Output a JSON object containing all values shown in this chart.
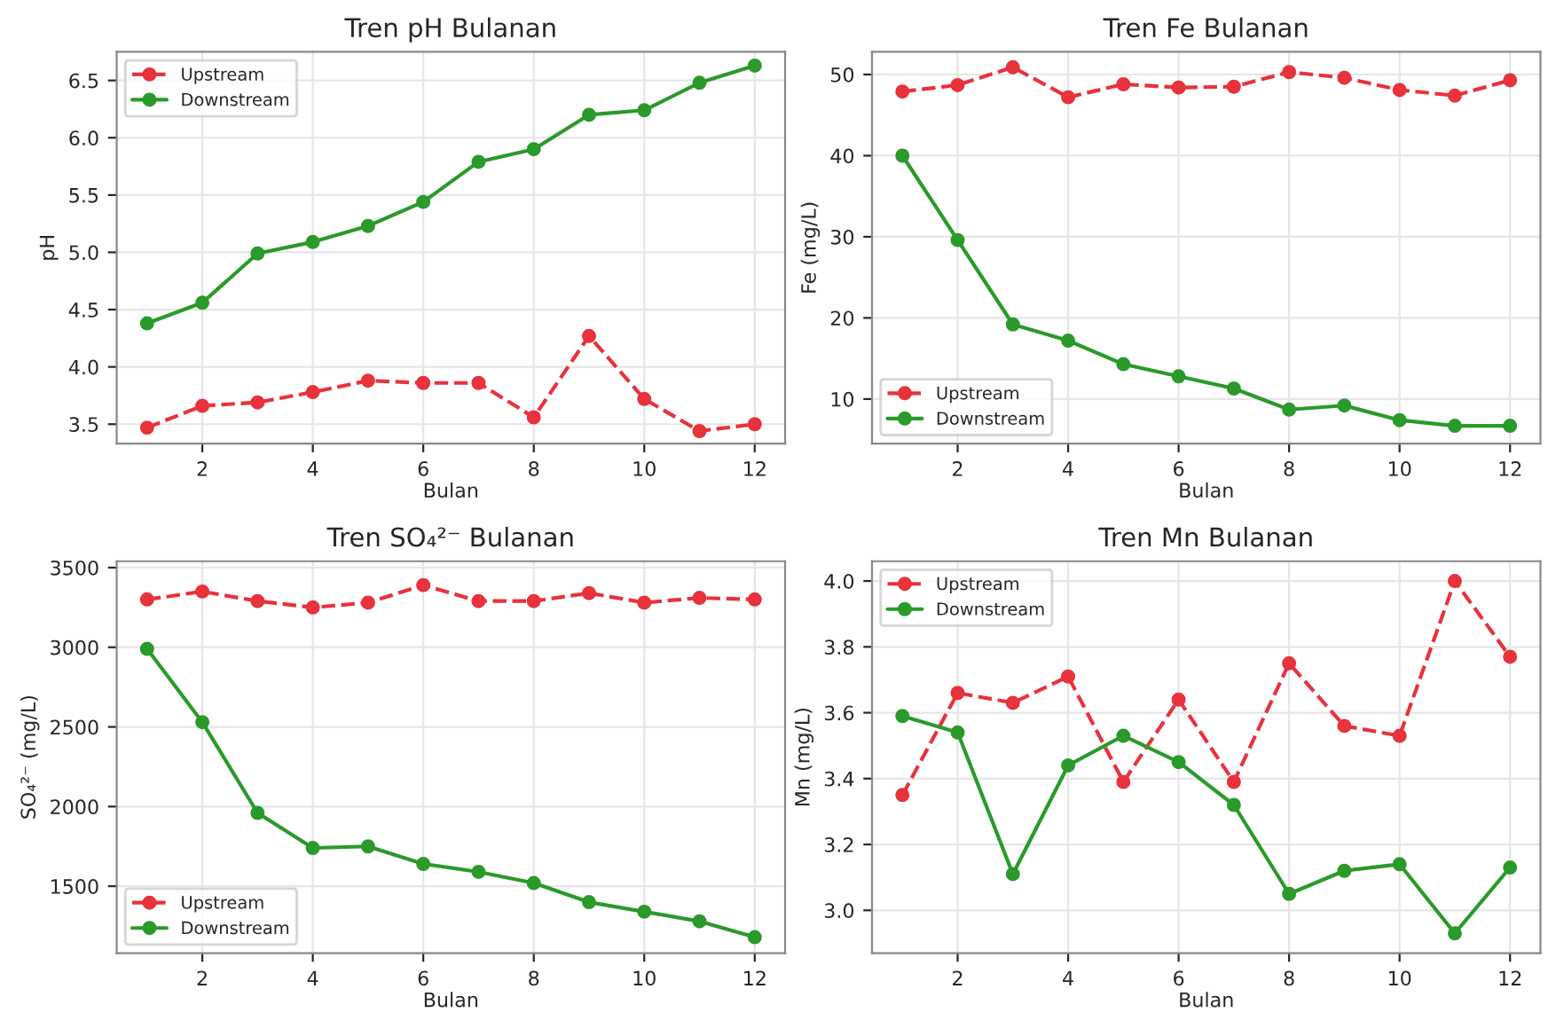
{
  "chart_data": [
    {
      "type": "line",
      "title": "Tren pH Bulanan",
      "xlabel": "Bulan",
      "ylabel": "pH",
      "x": [
        1,
        2,
        3,
        4,
        5,
        6,
        7,
        8,
        9,
        10,
        11,
        12
      ],
      "xlim": [
        0.45,
        12.55
      ],
      "xticks": [
        2,
        4,
        6,
        8,
        10,
        12
      ],
      "ylim": [
        3.33,
        6.75
      ],
      "yticks": [
        3.5,
        {
          "value": 4,
          "label": "4.0"
        },
        4.5,
        {
          "value": 5,
          "label": "5.0"
        },
        5.5,
        {
          "value": 6,
          "label": "6.0"
        },
        6.5
      ],
      "grid": true,
      "legend": "top left",
      "marker": "circle",
      "series": [
        {
          "name": "Upstream",
          "color": "#e8323c",
          "line_style": "dashed",
          "values": [
            3.47,
            3.66,
            3.69,
            3.78,
            3.88,
            3.86,
            3.86,
            3.56,
            4.27,
            3.72,
            3.44,
            3.5
          ]
        },
        {
          "name": "Downstream",
          "color": "#2a9a2a",
          "line_style": "solid",
          "values": [
            4.38,
            4.56,
            4.99,
            5.09,
            5.23,
            5.44,
            5.79,
            5.9,
            6.2,
            6.24,
            6.48,
            6.63
          ]
        }
      ]
    },
    {
      "type": "line",
      "title": "Tren Fe Bulanan",
      "xlabel": "Bulan",
      "ylabel": "Fe (mg/L)",
      "x": [
        1,
        2,
        3,
        4,
        5,
        6,
        7,
        8,
        9,
        10,
        11,
        12
      ],
      "xlim": [
        0.45,
        12.55
      ],
      "xticks": [
        2,
        4,
        6,
        8,
        10,
        12
      ],
      "ylim": [
        4.5,
        52.8
      ],
      "yticks": [
        10,
        20,
        30,
        40,
        50
      ],
      "grid": true,
      "legend": "bottom left",
      "marker": "circle",
      "series": [
        {
          "name": "Upstream",
          "color": "#e8323c",
          "line_style": "dashed",
          "values": [
            47.9,
            48.7,
            50.9,
            47.2,
            48.8,
            48.4,
            48.5,
            50.3,
            49.6,
            48.1,
            47.4,
            49.3
          ]
        },
        {
          "name": "Downstream",
          "color": "#2a9a2a",
          "line_style": "solid",
          "values": [
            40.0,
            29.6,
            19.2,
            17.2,
            14.3,
            12.8,
            11.3,
            8.7,
            9.2,
            7.4,
            6.7,
            6.7
          ]
        }
      ]
    },
    {
      "type": "line",
      "title": "Tren SO₄²⁻ Bulanan",
      "xlabel": "Bulan",
      "ylabel": "SO₄²⁻ (mg/L)",
      "x": [
        1,
        2,
        3,
        4,
        5,
        6,
        7,
        8,
        9,
        10,
        11,
        12
      ],
      "xlim": [
        0.45,
        12.55
      ],
      "xticks": [
        2,
        4,
        6,
        8,
        10,
        12
      ],
      "ylim": [
        1080,
        3540
      ],
      "yticks": [
        1500,
        2000,
        2500,
        3000,
        3500
      ],
      "grid": true,
      "legend": "bottom left",
      "marker": "circle",
      "series": [
        {
          "name": "Upstream",
          "color": "#e8323c",
          "line_style": "dashed",
          "values": [
            3300,
            3350,
            3290,
            3250,
            3280,
            3390,
            3290,
            3290,
            3340,
            3280,
            3310,
            3300
          ]
        },
        {
          "name": "Downstream",
          "color": "#2a9a2a",
          "line_style": "solid",
          "values": [
            2990,
            2530,
            1960,
            1740,
            1750,
            1640,
            1590,
            1520,
            1400,
            1340,
            1280,
            1180
          ]
        }
      ]
    },
    {
      "type": "line",
      "title": "Tren Mn Bulanan",
      "xlabel": "Bulan",
      "ylabel": "Mn (mg/L)",
      "x": [
        1,
        2,
        3,
        4,
        5,
        6,
        7,
        8,
        9,
        10,
        11,
        12
      ],
      "xlim": [
        0.45,
        12.55
      ],
      "xticks": [
        2,
        4,
        6,
        8,
        10,
        12
      ],
      "ylim": [
        2.87,
        4.06
      ],
      "yticks": [
        {
          "value": 3,
          "label": "3.0"
        },
        3.2,
        3.4,
        3.6,
        3.8,
        {
          "value": 4,
          "label": "4.0"
        }
      ],
      "grid": true,
      "legend": "top left",
      "marker": "circle",
      "series": [
        {
          "name": "Upstream",
          "color": "#e8323c",
          "line_style": "dashed",
          "values": [
            3.35,
            3.66,
            3.63,
            3.71,
            3.39,
            3.64,
            3.39,
            3.75,
            3.56,
            3.53,
            4.0,
            3.77
          ]
        },
        {
          "name": "Downstream",
          "color": "#2a9a2a",
          "line_style": "solid",
          "values": [
            3.59,
            3.54,
            3.11,
            3.44,
            3.53,
            3.45,
            3.32,
            3.05,
            3.12,
            3.14,
            2.93,
            3.13
          ]
        }
      ]
    }
  ]
}
